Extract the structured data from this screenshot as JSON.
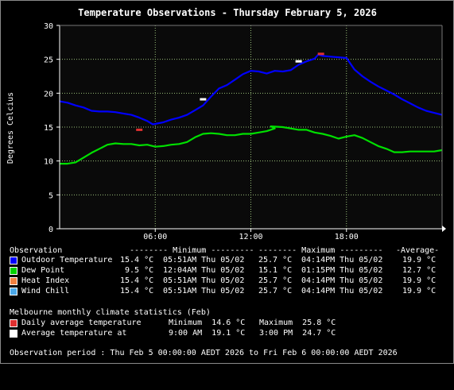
{
  "chart_data": {
    "type": "line",
    "title": "Temperature Observations - Thursday February 5, 2026",
    "ylabel": "Degrees Celcius",
    "xlabel": "",
    "ylim": [
      0,
      30
    ],
    "yticks": [
      "0",
      "5",
      "10",
      "15",
      "20",
      "25",
      "30"
    ],
    "xlim": [
      0,
      24
    ],
    "xticks": [
      {
        "x": 6,
        "label": "06:00"
      },
      {
        "x": 12,
        "label": "12:00"
      },
      {
        "x": 18,
        "label": "18:00"
      }
    ],
    "grid": true,
    "background": "#0a0a0a",
    "series": [
      {
        "name": "Outdoor Temperature",
        "color": "#0000ff",
        "x": [
          0,
          0.5,
          1,
          1.5,
          2,
          2.5,
          3,
          3.5,
          4,
          4.5,
          5,
          5.5,
          5.85,
          6.5,
          7,
          7.5,
          8,
          8.5,
          9,
          9.5,
          10,
          10.5,
          11,
          11.5,
          12,
          12.5,
          13,
          13.5,
          14,
          14.5,
          15,
          15.5,
          16,
          16.23,
          16.5,
          17,
          17.5,
          18,
          18.5,
          19,
          19.5,
          20,
          20.5,
          21,
          21.5,
          22,
          22.5,
          23,
          23.5,
          24
        ],
        "y": [
          18.8,
          18.6,
          18.2,
          17.9,
          17.4,
          17.3,
          17.3,
          17.2,
          17.0,
          16.8,
          16.4,
          15.9,
          15.4,
          15.7,
          16.1,
          16.4,
          16.8,
          17.5,
          18.2,
          19.5,
          20.7,
          21.2,
          22.0,
          22.8,
          23.3,
          23.2,
          22.9,
          23.3,
          23.2,
          23.4,
          24.2,
          24.7,
          25.1,
          25.7,
          25.5,
          25.4,
          25.3,
          25.2,
          23.5,
          22.5,
          21.7,
          21.0,
          20.4,
          19.8,
          19.1,
          18.5,
          17.9,
          17.4,
          17.1,
          16.8
        ]
      },
      {
        "name": "Dew Point",
        "color": "#00e000",
        "x": [
          0,
          0.5,
          1,
          1.5,
          2,
          2.5,
          3,
          3.5,
          4,
          4.5,
          5,
          5.5,
          6,
          6.5,
          7,
          7.5,
          8,
          8.5,
          9,
          9.5,
          10,
          10.5,
          11,
          11.5,
          12,
          12.5,
          13,
          13.5,
          13.25,
          14,
          14.5,
          15,
          15.5,
          16,
          16.5,
          17,
          17.5,
          18,
          18.5,
          19,
          19.5,
          20,
          20.5,
          21,
          21.5,
          22,
          22.5,
          23,
          23.5,
          24
        ],
        "y": [
          9.6,
          9.6,
          9.8,
          10.5,
          11.2,
          11.8,
          12.4,
          12.6,
          12.5,
          12.5,
          12.3,
          12.4,
          12.1,
          12.2,
          12.4,
          12.5,
          12.8,
          13.5,
          14.0,
          14.1,
          14.0,
          13.8,
          13.8,
          14.0,
          14.0,
          14.2,
          14.4,
          14.8,
          15.1,
          15.0,
          14.8,
          14.6,
          14.6,
          14.2,
          14.0,
          13.7,
          13.3,
          13.6,
          13.8,
          13.4,
          12.8,
          12.2,
          11.8,
          11.3,
          11.3,
          11.4,
          11.4,
          11.4,
          11.4,
          11.6
        ]
      }
    ],
    "markers": [
      {
        "name": "Daily average temperature minimum",
        "x": 5.0,
        "y": 14.6,
        "color": "#e03030"
      },
      {
        "name": "Daily average temperature maximum",
        "x": 16.4,
        "y": 25.8,
        "color": "#e03030"
      },
      {
        "name": "Average temperature minimum",
        "x": 9.0,
        "y": 19.1,
        "color": "#ffffff"
      },
      {
        "name": "Average temperature maximum",
        "x": 15.0,
        "y": 24.7,
        "color": "#ffffff"
      }
    ]
  },
  "legend": {
    "header": {
      "label": "Observation",
      "min": "-------- Minimum ---------",
      "max": "-------- Maximum ---------",
      "avg": "-Average-"
    },
    "rows": [
      {
        "label": "Outdoor Temperature",
        "color": "#0000ff",
        "min_val": "15.4 °C",
        "min_time": "05:51AM Thu 05/02",
        "max_val": "25.7 °C",
        "max_time": "04:14PM Thu 05/02",
        "avg": "19.9 °C"
      },
      {
        "label": "Dew Point",
        "color": "#00d000",
        "min_val": " 9.5 °C",
        "min_time": "12:04AM Thu 05/02",
        "max_val": "15.1 °C",
        "max_time": "01:15PM Thu 05/02",
        "avg": "12.7 °C"
      },
      {
        "label": "Heat Index",
        "color": "#f08040",
        "min_val": "15.4 °C",
        "min_time": "05:51AM Thu 05/02",
        "max_val": "25.7 °C",
        "max_time": "04:14PM Thu 05/02",
        "avg": "19.9 °C"
      },
      {
        "label": "Wind Chill",
        "color": "#4aa8e8",
        "min_val": "15.4 °C",
        "min_time": "05:51AM Thu 05/02",
        "max_val": "25.7 °C",
        "max_time": "04:14PM Thu 05/02",
        "avg": "19.9 °C"
      }
    ]
  },
  "climate": {
    "title": "Melbourne monthly climate statistics (Feb)",
    "rows": [
      {
        "label": "Daily average temperature",
        "color": "#e03030",
        "left": "Minimum  14.6 °C",
        "right": "Maximum  25.8 °C"
      },
      {
        "label": "Average temperature at",
        "color": "#ffffff",
        "left": "9:00 AM  19.1 °C",
        "right": "3:00 PM  24.7 °C"
      }
    ]
  },
  "period": "Observation period : Thu Feb 5 00:00:00 AEDT 2026 to Fri Feb 6 00:00:00 AEDT 2026"
}
